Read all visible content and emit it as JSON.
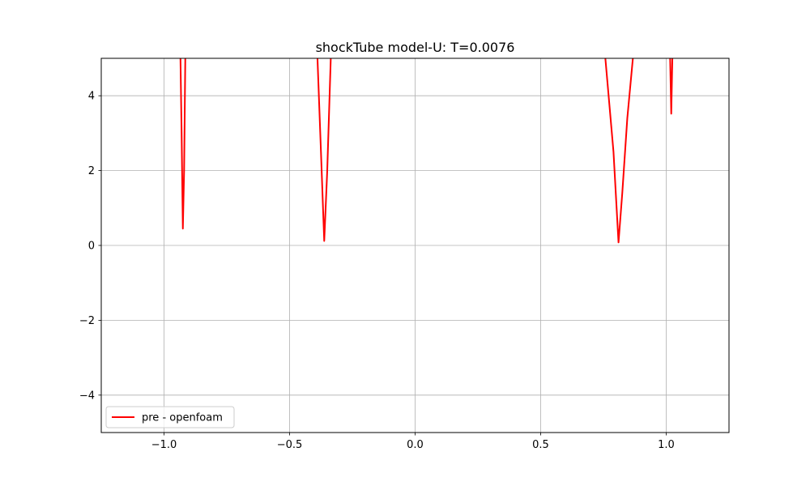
{
  "chart_data": {
    "type": "line",
    "title": "shockTube model-U: T=0.0076",
    "xlabel": "",
    "ylabel": "",
    "xlim": [
      -1.25,
      1.25
    ],
    "ylim": [
      -5,
      5
    ],
    "x_ticks": [
      -1.0,
      -0.5,
      0.0,
      0.5,
      1.0
    ],
    "x_tick_labels": [
      "−1.0",
      "−0.5",
      "0.0",
      "0.5",
      "1.0"
    ],
    "y_ticks": [
      -4,
      -2,
      0,
      2,
      4
    ],
    "y_tick_labels": [
      "−4",
      "−2",
      "0",
      "2",
      "4"
    ],
    "grid": true,
    "legend_position": "lower-left",
    "series": [
      {
        "name": "pre - openfoam",
        "color": "#ff0000",
        "segments": [
          [
            [
              -0.935,
              5.2
            ],
            [
              -0.93,
              3.0
            ],
            [
              -0.925,
              0.45
            ],
            [
              -0.92,
              2.0
            ],
            [
              -0.915,
              5.2
            ]
          ],
          [
            [
              -0.39,
              5.2
            ],
            [
              -0.375,
              2.5
            ],
            [
              -0.362,
              0.12
            ],
            [
              -0.35,
              2.0
            ],
            [
              -0.335,
              5.2
            ]
          ],
          [
            [
              0.755,
              5.2
            ],
            [
              0.79,
              2.5
            ],
            [
              0.81,
              0.08
            ],
            [
              0.825,
              1.4
            ],
            [
              0.845,
              3.4
            ],
            [
              0.87,
              5.2
            ]
          ],
          [
            [
              1.015,
              5.2
            ],
            [
              1.02,
              3.52
            ],
            [
              1.025,
              5.2
            ]
          ]
        ]
      }
    ]
  }
}
